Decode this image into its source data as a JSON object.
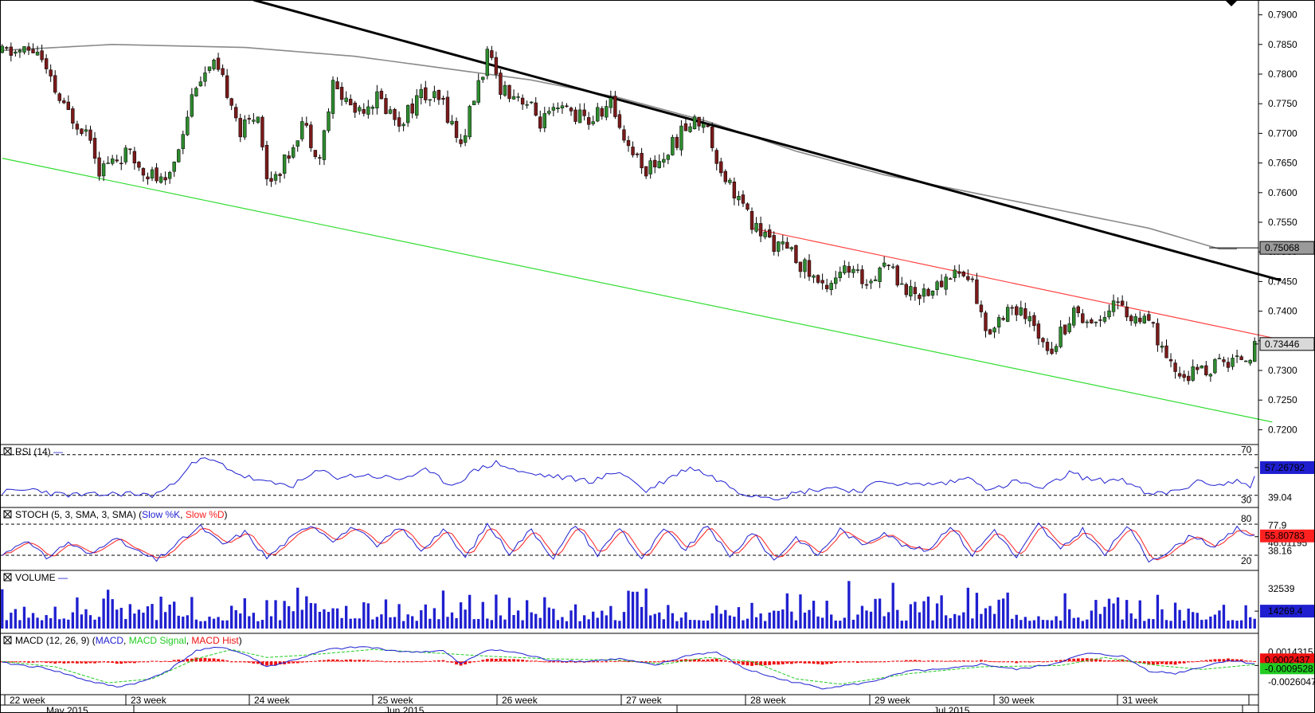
{
  "colors": {
    "up": "#2e8b2e",
    "down": "#7a1a1a",
    "wick": "#000000",
    "sma200": "#8a8a8a",
    "trend_black": "#000000",
    "channel_red": "#ff4040",
    "channel_green": "#33dd33",
    "rsi": "#1f1fd0",
    "stoch_k": "#1f1fd0",
    "stoch_d": "#ff2020",
    "volume": "#1f1fd0",
    "macd": "#1f1fd0",
    "macd_signal": "#22cc22",
    "macd_hist": "#ee1111"
  },
  "chart_data": {
    "type": "candlestick",
    "price_axis": {
      "range": [
        0.7175,
        0.7925
      ],
      "ticks": [
        "0.7900",
        "0.7850",
        "0.7800",
        "0.7750",
        "0.7700",
        "0.7650",
        "0.7600",
        "0.7550",
        "0.7500",
        "0.7450",
        "0.7400",
        "0.7350",
        "0.7300",
        "0.7250",
        "0.7200"
      ]
    },
    "last_price_label": "0.73446",
    "sma_label": "0.75068",
    "x_week_labels": [
      "22 week",
      "23 week",
      "24 week",
      "25 week",
      "26 week",
      "27 week",
      "28 week",
      "29 week",
      "30 week",
      "31 week"
    ],
    "x_month_labels": [
      "May 2015",
      "Jun 2015",
      "Jul 2015"
    ],
    "bars_count": 285,
    "price_keypoints": [
      [
        0,
        0.7835
      ],
      [
        8,
        0.784
      ],
      [
        10,
        0.78
      ],
      [
        14,
        0.774
      ],
      [
        20,
        0.77
      ],
      [
        22,
        0.764
      ],
      [
        28,
        0.7665
      ],
      [
        34,
        0.763
      ],
      [
        37,
        0.761
      ],
      [
        40,
        0.768
      ],
      [
        44,
        0.779
      ],
      [
        48,
        0.781
      ],
      [
        52,
        0.776
      ],
      [
        54,
        0.77
      ],
      [
        58,
        0.774
      ],
      [
        60,
        0.762
      ],
      [
        64,
        0.765
      ],
      [
        68,
        0.772
      ],
      [
        72,
        0.766
      ],
      [
        75,
        0.778
      ],
      [
        80,
        0.774
      ],
      [
        85,
        0.776
      ],
      [
        90,
        0.772
      ],
      [
        95,
        0.7765
      ],
      [
        100,
        0.775
      ],
      [
        104,
        0.768
      ],
      [
        107,
        0.776
      ],
      [
        110,
        0.783
      ],
      [
        113,
        0.778
      ],
      [
        118,
        0.776
      ],
      [
        122,
        0.772
      ],
      [
        128,
        0.774
      ],
      [
        133,
        0.772
      ],
      [
        138,
        0.775
      ],
      [
        142,
        0.768
      ],
      [
        146,
        0.764
      ],
      [
        150,
        0.766
      ],
      [
        155,
        0.771
      ],
      [
        159,
        0.7725
      ],
      [
        163,
        0.764
      ],
      [
        167,
        0.759
      ],
      [
        170,
        0.7545
      ],
      [
        174,
        0.752
      ],
      [
        180,
        0.749
      ],
      [
        186,
        0.744
      ],
      [
        190,
        0.747
      ],
      [
        196,
        0.745
      ],
      [
        200,
        0.7485
      ],
      [
        206,
        0.743
      ],
      [
        212,
        0.744
      ],
      [
        216,
        0.747
      ],
      [
        220,
        0.745
      ],
      [
        223,
        0.736
      ],
      [
        228,
        0.741
      ],
      [
        233,
        0.738
      ],
      [
        238,
        0.734
      ],
      [
        243,
        0.74
      ],
      [
        248,
        0.738
      ],
      [
        252,
        0.742
      ],
      [
        256,
        0.739
      ],
      [
        261,
        0.737
      ],
      [
        264,
        0.731
      ],
      [
        268,
        0.729
      ],
      [
        272,
        0.73
      ],
      [
        276,
        0.731
      ],
      [
        280,
        0.732
      ],
      [
        284,
        0.7335
      ]
    ],
    "sma200_keypoints": [
      [
        0,
        0.784
      ],
      [
        25,
        0.785
      ],
      [
        55,
        0.7845
      ],
      [
        80,
        0.783
      ],
      [
        100,
        0.781
      ],
      [
        120,
        0.779
      ],
      [
        140,
        0.776
      ],
      [
        160,
        0.772
      ],
      [
        180,
        0.767
      ],
      [
        200,
        0.763
      ],
      [
        220,
        0.76
      ],
      [
        240,
        0.757
      ],
      [
        260,
        0.754
      ],
      [
        276,
        0.7505
      ],
      [
        280,
        0.7505
      ]
    ],
    "trendlines": [
      {
        "id": "black",
        "from": [
          57,
          0.7925
        ],
        "to": [
          290,
          0.7452
        ]
      },
      {
        "id": "red",
        "from": [
          170,
          0.754
        ],
        "to": [
          288,
          0.7355
        ]
      },
      {
        "id": "green",
        "from": [
          0,
          0.7658
        ],
        "to": [
          288,
          0.7213
        ]
      }
    ],
    "rsi": {
      "label": "RSI (14)",
      "range": [
        18,
        80
      ],
      "levels": [
        70,
        30
      ],
      "level_labels": [
        "70",
        "30"
      ],
      "extra_label": "39.04",
      "value_label": "57.26792",
      "keypoints": [
        [
          0,
          33
        ],
        [
          8,
          36
        ],
        [
          12,
          31
        ],
        [
          20,
          30
        ],
        [
          28,
          32
        ],
        [
          34,
          30
        ],
        [
          38,
          38
        ],
        [
          42,
          58
        ],
        [
          46,
          66
        ],
        [
          50,
          60
        ],
        [
          54,
          50
        ],
        [
          60,
          42
        ],
        [
          66,
          40
        ],
        [
          72,
          54
        ],
        [
          76,
          48
        ],
        [
          82,
          50
        ],
        [
          90,
          46
        ],
        [
          96,
          54
        ],
        [
          102,
          40
        ],
        [
          108,
          56
        ],
        [
          112,
          62
        ],
        [
          118,
          52
        ],
        [
          126,
          48
        ],
        [
          134,
          44
        ],
        [
          140,
          54
        ],
        [
          146,
          34
        ],
        [
          150,
          44
        ],
        [
          156,
          58
        ],
        [
          162,
          46
        ],
        [
          168,
          32
        ],
        [
          176,
          28
        ],
        [
          182,
          34
        ],
        [
          188,
          38
        ],
        [
          194,
          34
        ],
        [
          200,
          44
        ],
        [
          206,
          40
        ],
        [
          214,
          42
        ],
        [
          220,
          48
        ],
        [
          224,
          34
        ],
        [
          230,
          44
        ],
        [
          236,
          36
        ],
        [
          242,
          52
        ],
        [
          248,
          44
        ],
        [
          254,
          46
        ],
        [
          260,
          30
        ],
        [
          266,
          34
        ],
        [
          272,
          44
        ],
        [
          276,
          40
        ],
        [
          280,
          44
        ],
        [
          283,
          40
        ],
        [
          285,
          57
        ]
      ]
    },
    "stoch": {
      "label": "STOCH (5, 3, SMA, 3, SMA)",
      "legend": [
        "Slow %K",
        "Slow %D"
      ],
      "range": [
        0,
        100
      ],
      "levels": [
        80,
        20
      ],
      "level_labels": [
        "80",
        "20"
      ],
      "extra_labels": [
        "77.9",
        "46.01195",
        "38.16"
      ],
      "value_label": "55.80783",
      "k_keypoints": [
        [
          0,
          20
        ],
        [
          5,
          50
        ],
        [
          10,
          15
        ],
        [
          15,
          45
        ],
        [
          20,
          20
        ],
        [
          25,
          55
        ],
        [
          30,
          30
        ],
        [
          35,
          10
        ],
        [
          40,
          45
        ],
        [
          45,
          75
        ],
        [
          50,
          40
        ],
        [
          55,
          65
        ],
        [
          60,
          15
        ],
        [
          65,
          50
        ],
        [
          70,
          80
        ],
        [
          75,
          50
        ],
        [
          80,
          75
        ],
        [
          85,
          35
        ],
        [
          90,
          75
        ],
        [
          95,
          30
        ],
        [
          100,
          70
        ],
        [
          105,
          15
        ],
        [
          110,
          80
        ],
        [
          115,
          25
        ],
        [
          120,
          70
        ],
        [
          125,
          15
        ],
        [
          130,
          80
        ],
        [
          135,
          20
        ],
        [
          140,
          75
        ],
        [
          145,
          10
        ],
        [
          150,
          70
        ],
        [
          155,
          30
        ],
        [
          160,
          78
        ],
        [
          165,
          15
        ],
        [
          170,
          65
        ],
        [
          175,
          10
        ],
        [
          180,
          55
        ],
        [
          185,
          20
        ],
        [
          190,
          70
        ],
        [
          195,
          40
        ],
        [
          200,
          65
        ],
        [
          205,
          35
        ],
        [
          210,
          30
        ],
        [
          215,
          78
        ],
        [
          220,
          20
        ],
        [
          225,
          70
        ],
        [
          230,
          15
        ],
        [
          235,
          80
        ],
        [
          240,
          30
        ],
        [
          245,
          70
        ],
        [
          250,
          20
        ],
        [
          255,
          78
        ],
        [
          260,
          10
        ],
        [
          265,
          30
        ],
        [
          270,
          60
        ],
        [
          275,
          35
        ],
        [
          280,
          72
        ],
        [
          285,
          50
        ]
      ]
    },
    "volume": {
      "label": "VOLUME",
      "range": [
        0,
        45000
      ],
      "tick_label": "32539",
      "value_label": "14269.4",
      "values_seed": 17
    },
    "macd": {
      "label": "MACD (12, 26, 9)",
      "legend": [
        "MACD",
        "MACD Signal",
        "MACD Hist"
      ],
      "range": [
        -0.0045,
        0.0035
      ],
      "labels": [
        "0.0014315",
        "0.0002437",
        "-0.0009528",
        "-0.0026047"
      ],
      "macd_keypoints": [
        [
          0,
          -0.0002
        ],
        [
          10,
          -0.001
        ],
        [
          20,
          -0.003
        ],
        [
          26,
          -0.0038
        ],
        [
          32,
          -0.003
        ],
        [
          38,
          -0.0012
        ],
        [
          44,
          0.0016
        ],
        [
          50,
          0.0022
        ],
        [
          56,
          0.0008
        ],
        [
          60,
          -0.0008
        ],
        [
          66,
          0.0002
        ],
        [
          74,
          0.0018
        ],
        [
          82,
          0.0022
        ],
        [
          92,
          0.0014
        ],
        [
          100,
          0.0016
        ],
        [
          104,
          -0.0004
        ],
        [
          110,
          0.0018
        ],
        [
          116,
          0.0014
        ],
        [
          124,
          0.0002
        ],
        [
          132,
          0.0
        ],
        [
          140,
          0.0004
        ],
        [
          148,
          -0.0006
        ],
        [
          156,
          0.001
        ],
        [
          162,
          0.0014
        ],
        [
          168,
          -0.001
        ],
        [
          176,
          -0.0026
        ],
        [
          186,
          -0.004
        ],
        [
          196,
          -0.0032
        ],
        [
          206,
          -0.0014
        ],
        [
          214,
          -0.0012
        ],
        [
          222,
          -0.0004
        ],
        [
          230,
          -0.0012
        ],
        [
          238,
          -0.0004
        ],
        [
          246,
          0.0012
        ],
        [
          254,
          0.0008
        ],
        [
          260,
          -0.0014
        ],
        [
          266,
          -0.0018
        ],
        [
          272,
          -0.0008
        ],
        [
          278,
          0.0002
        ],
        [
          285,
          -0.0004
        ]
      ],
      "signal_keypoints": [
        [
          0,
          0.0
        ],
        [
          12,
          -0.0008
        ],
        [
          24,
          -0.0032
        ],
        [
          34,
          -0.0026
        ],
        [
          44,
          0.0004
        ],
        [
          52,
          0.0018
        ],
        [
          60,
          0.0006
        ],
        [
          70,
          0.001
        ],
        [
          84,
          0.0018
        ],
        [
          100,
          0.0012
        ],
        [
          110,
          0.0008
        ],
        [
          124,
          0.0004
        ],
        [
          140,
          0.0002
        ],
        [
          150,
          -0.0004
        ],
        [
          160,
          0.0006
        ],
        [
          170,
          0.0
        ],
        [
          180,
          -0.0026
        ],
        [
          190,
          -0.0034
        ],
        [
          206,
          -0.0018
        ],
        [
          222,
          -0.0008
        ],
        [
          240,
          -0.0006
        ],
        [
          250,
          0.0006
        ],
        [
          262,
          -0.0006
        ],
        [
          272,
          -0.0012
        ],
        [
          285,
          -0.0004
        ]
      ]
    }
  }
}
